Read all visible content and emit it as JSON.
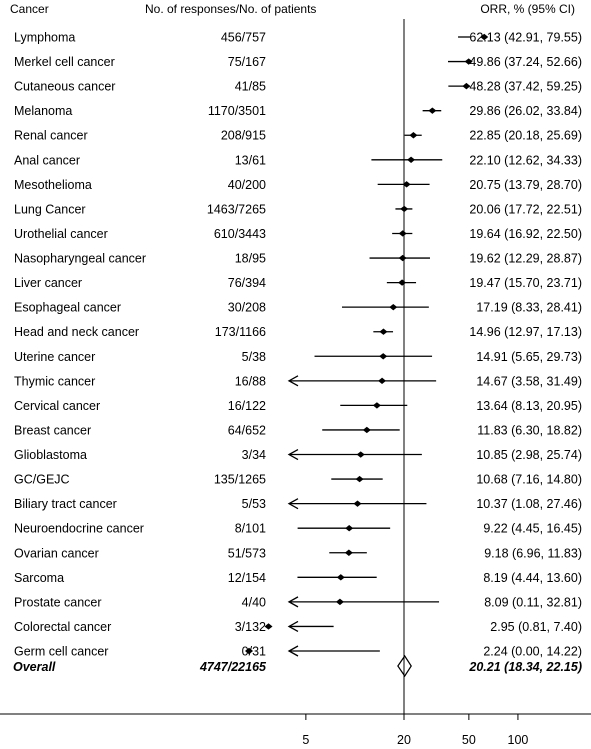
{
  "chart_data": {
    "type": "forest",
    "columns": {
      "cancer": "Cancer",
      "responses": "No. of responses/No. of patients",
      "orr": "ORR, % (95% CI)"
    },
    "x_scale": "log",
    "reference_line": 20,
    "x_ticks": [
      5,
      20,
      50,
      100
    ],
    "rows": [
      {
        "name": "Lymphoma",
        "responses": "456/757",
        "label": "62.13 (42.91, 79.55)",
        "est": 62.13,
        "lo": 42.91,
        "hi": 79.55
      },
      {
        "name": "Merkel cell cancer",
        "responses": "75/167",
        "label": "49.86 (37.24, 52.66)",
        "est": 49.86,
        "lo": 37.24,
        "hi": 52.66
      },
      {
        "name": "Cutaneous cancer",
        "responses": "41/85",
        "label": "48.28 (37.42, 59.25)",
        "est": 48.28,
        "lo": 37.42,
        "hi": 59.25
      },
      {
        "name": "Melanoma",
        "responses": "1170/3501",
        "label": "29.86 (26.02, 33.84)",
        "est": 29.86,
        "lo": 26.02,
        "hi": 33.84
      },
      {
        "name": "Renal cancer",
        "responses": "208/915",
        "label": "22.85 (20.18, 25.69)",
        "est": 22.85,
        "lo": 20.18,
        "hi": 25.69
      },
      {
        "name": "Anal cancer",
        "responses": "13/61",
        "label": "22.10 (12.62, 34.33)",
        "est": 22.1,
        "lo": 12.62,
        "hi": 34.33
      },
      {
        "name": "Mesothelioma",
        "responses": "40/200",
        "label": "20.75 (13.79, 28.70)",
        "est": 20.75,
        "lo": 13.79,
        "hi": 28.7
      },
      {
        "name": "Lung Cancer",
        "responses": "1463/7265",
        "label": "20.06 (17.72, 22.51)",
        "est": 20.06,
        "lo": 17.72,
        "hi": 22.51
      },
      {
        "name": "Urothelial cancer",
        "responses": "610/3443",
        "label": "19.64 (16.92, 22.50)",
        "est": 19.64,
        "lo": 16.92,
        "hi": 22.5
      },
      {
        "name": "Nasopharyngeal cancer",
        "responses": "18/95",
        "label": "19.62 (12.29, 28.87)",
        "est": 19.62,
        "lo": 12.29,
        "hi": 28.87
      },
      {
        "name": "Liver cancer",
        "responses": "76/394",
        "label": "19.47 (15.70, 23.71)",
        "est": 19.47,
        "lo": 15.7,
        "hi": 23.71
      },
      {
        "name": "Esophageal cancer",
        "responses": "30/208",
        "label": "17.19 (8.33, 28.41)",
        "est": 17.19,
        "lo": 8.33,
        "hi": 28.41
      },
      {
        "name": "Head and neck cancer",
        "responses": "173/1166",
        "label": "14.96 (12.97, 17.13)",
        "est": 14.96,
        "lo": 12.97,
        "hi": 17.13
      },
      {
        "name": "Uterine cancer",
        "responses": "5/38",
        "label": "14.91 (5.65, 29.73)",
        "est": 14.91,
        "lo": 5.65,
        "hi": 29.73
      },
      {
        "name": "Thymic cancer",
        "responses": "16/88",
        "label": "14.67 (3.58, 31.49)",
        "est": 14.67,
        "lo": 3.58,
        "hi": 31.49
      },
      {
        "name": "Cervical cancer",
        "responses": "16/122",
        "label": "13.64 (8.13, 20.95)",
        "est": 13.64,
        "lo": 8.13,
        "hi": 20.95
      },
      {
        "name": "Breast cancer",
        "responses": "64/652",
        "label": "11.83 (6.30, 18.82)",
        "est": 11.83,
        "lo": 6.3,
        "hi": 18.82
      },
      {
        "name": "Glioblastoma",
        "responses": "3/34",
        "label": "10.85 (2.98, 25.74)",
        "est": 10.85,
        "lo": 2.98,
        "hi": 25.74
      },
      {
        "name": "GC/GEJC",
        "responses": "135/1265",
        "label": "10.68 (7.16, 14.80)",
        "est": 10.68,
        "lo": 7.16,
        "hi": 14.8
      },
      {
        "name": "Biliary tract cancer",
        "responses": "5/53",
        "label": "10.37 (1.08, 27.46)",
        "est": 10.37,
        "lo": 1.08,
        "hi": 27.46
      },
      {
        "name": "Neuroendocrine cancer",
        "responses": "8/101",
        "label": "9.22 (4.45, 16.45)",
        "est": 9.22,
        "lo": 4.45,
        "hi": 16.45
      },
      {
        "name": "Ovarian cancer",
        "responses": "51/573",
        "label": "9.18 (6.96, 11.83)",
        "est": 9.18,
        "lo": 6.96,
        "hi": 11.83
      },
      {
        "name": "Sarcoma",
        "responses": "12/154",
        "label": "8.19 (4.44, 13.60)",
        "est": 8.19,
        "lo": 4.44,
        "hi": 13.6
      },
      {
        "name": "Prostate cancer",
        "responses": "4/40",
        "label": "8.09 (0.11, 32.81)",
        "est": 8.09,
        "lo": 0.11,
        "hi": 32.81
      },
      {
        "name": "Colorectal cancer",
        "responses": "3/132",
        "label": "2.95 (0.81, 7.40)",
        "est": 2.95,
        "lo": 0.81,
        "hi": 7.4
      },
      {
        "name": "Germ cell cancer",
        "responses": "0/31",
        "label": "2.24 (0.00, 14.22)",
        "est": 2.24,
        "lo": 0.0,
        "hi": 14.22
      }
    ],
    "overall": {
      "name": "Overall",
      "responses": "4747/22165",
      "label": "20.21 (18.34, 22.15)",
      "est": 20.21,
      "lo": 18.34,
      "hi": 22.15
    }
  }
}
